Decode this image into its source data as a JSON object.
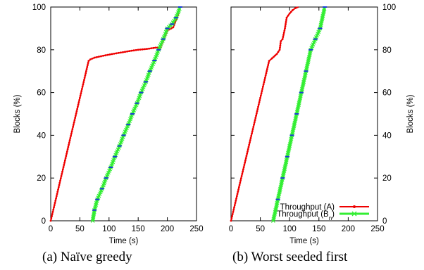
{
  "chart_data": [
    {
      "type": "line",
      "panel": "a",
      "caption": "(a) Naïve greedy",
      "xlabel": "Time (s)",
      "ylabel": "Blocks (%)",
      "xlim": [
        0,
        250
      ],
      "ylim": [
        0,
        100
      ],
      "xticks": [
        0,
        50,
        100,
        150,
        200,
        250
      ],
      "yticks": [
        0,
        20,
        40,
        60,
        80,
        100
      ],
      "grid": false,
      "y_axis_side": "left",
      "series": [
        {
          "color": "#ee0000",
          "marker": "dot",
          "x": [
            0,
            10,
            20,
            30,
            40,
            50,
            60,
            65,
            68,
            75,
            90,
            105,
            120,
            135,
            150,
            165,
            180,
            188,
            200,
            210,
            218,
            222
          ],
          "y": [
            0,
            11.5,
            23,
            34.5,
            46,
            57.5,
            69,
            74.8,
            75.5,
            76.3,
            77.2,
            78,
            78.7,
            79.4,
            80,
            80.4,
            81,
            81,
            89,
            90.5,
            96,
            100
          ]
        },
        {
          "color": "#33ee33",
          "marker": "x",
          "x": [
            72,
            75,
            80,
            88,
            95,
            103,
            110,
            118,
            125,
            133,
            140,
            148,
            155,
            163,
            170,
            178,
            185,
            193,
            200,
            208,
            215,
            222
          ],
          "y": [
            0,
            5,
            10,
            15,
            20,
            25,
            30,
            35,
            40,
            45,
            50,
            55,
            60,
            65,
            70,
            75,
            80,
            85,
            90,
            92,
            95,
            100
          ]
        }
      ]
    },
    {
      "type": "line",
      "panel": "b",
      "caption": "(b) Worst seeded first",
      "xlabel": "Time (s)",
      "ylabel": "Blocks (%)",
      "xlim": [
        0,
        250
      ],
      "ylim": [
        0,
        100
      ],
      "xticks": [
        0,
        50,
        100,
        150,
        200,
        250
      ],
      "yticks": [
        0,
        20,
        40,
        60,
        80,
        100
      ],
      "grid": false,
      "y_axis_side": "right",
      "legend_position": "bottom-right",
      "series": [
        {
          "name": "Throughput (A)",
          "color": "#ee0000",
          "marker": "dot",
          "x": [
            0,
            10,
            20,
            30,
            40,
            50,
            60,
            65,
            70,
            78,
            83,
            85,
            88,
            92,
            95,
            100,
            105,
            110,
            115
          ],
          "y": [
            0,
            11.5,
            23,
            34.5,
            46,
            57.5,
            69,
            74.8,
            76,
            78,
            80,
            84,
            85,
            90,
            95,
            97,
            98.5,
            99.5,
            100
          ]
        },
        {
          "name": "Throughput (B_n)",
          "color": "#33ee33",
          "marker": "x",
          "x": [
            72,
            80,
            88,
            96,
            104,
            112,
            120,
            128,
            136,
            144,
            152,
            160
          ],
          "y": [
            0,
            10,
            20,
            30,
            40,
            50,
            60,
            70,
            80,
            85,
            90,
            100
          ]
        }
      ]
    }
  ],
  "legend": {
    "entries": [
      "Throughput (A)",
      "Throughput (B",
      "n",
      ")"
    ]
  }
}
